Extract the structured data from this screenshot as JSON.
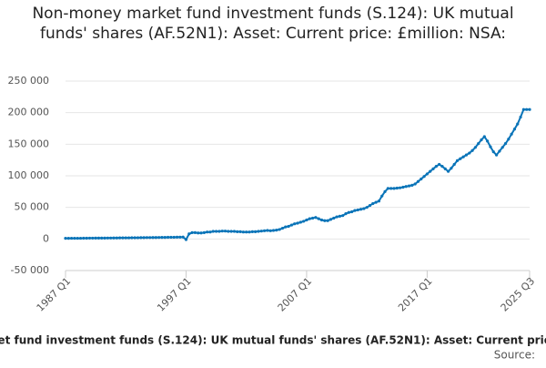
{
  "chart_data": {
    "type": "line",
    "title": "Non-money market fund investment funds (S.124): UK mutual funds' shares (AF.52N1): Asset: Current price: £million: NSA:",
    "source": "Source:",
    "categories": [
      "1987 Q1",
      null,
      null,
      null,
      null,
      null,
      null,
      null,
      null,
      null,
      null,
      null,
      null,
      null,
      null,
      null,
      null,
      null,
      null,
      null,
      null,
      null,
      null,
      null,
      null,
      null,
      null,
      null,
      null,
      null,
      null,
      null,
      null,
      null,
      null,
      null,
      null,
      null,
      null,
      null,
      "1997 Q1",
      null,
      null,
      null,
      null,
      null,
      null,
      null,
      null,
      null,
      null,
      null,
      null,
      null,
      null,
      null,
      null,
      null,
      null,
      null,
      null,
      null,
      null,
      null,
      null,
      null,
      null,
      null,
      null,
      null,
      null,
      null,
      null,
      null,
      null,
      null,
      null,
      null,
      null,
      null,
      "2007 Q1",
      null,
      null,
      null,
      null,
      null,
      null,
      null,
      null,
      null,
      null,
      null,
      null,
      null,
      null,
      null,
      null,
      null,
      null,
      null,
      null,
      null,
      null,
      null,
      null,
      null,
      null,
      null,
      null,
      null,
      null,
      null,
      null,
      null,
      null,
      null,
      null,
      null,
      null,
      null,
      "2017 Q1",
      null,
      null,
      null,
      null,
      null,
      null,
      null,
      null,
      null,
      null,
      null,
      null,
      null,
      null,
      null,
      null,
      null,
      null,
      null,
      null,
      null,
      null,
      null,
      null,
      null,
      null,
      null,
      null,
      null,
      null,
      null,
      null,
      null,
      "2025 Q3"
    ],
    "series": [
      {
        "name": "Non-money market fund investment funds (S.124): UK mutual funds' shares (AF.52N1): Asset: Current price: £million: NSA:",
        "color": "#0a74b8",
        "values": [
          1000,
          1000,
          1100,
          1100,
          1100,
          1100,
          1200,
          1200,
          1300,
          1300,
          1400,
          1400,
          1400,
          1400,
          1500,
          1500,
          1600,
          1600,
          1700,
          1700,
          1800,
          1800,
          1900,
          1900,
          2000,
          2100,
          2100,
          2200,
          2200,
          2300,
          2300,
          2400,
          2500,
          2500,
          2600,
          2700,
          2700,
          2800,
          2900,
          3000,
          -1000,
          8000,
          10000,
          10000,
          9500,
          9500,
          10000,
          11000,
          11000,
          12000,
          12000,
          12000,
          12500,
          12500,
          12000,
          12000,
          12000,
          11500,
          11500,
          11000,
          11000,
          11000,
          11500,
          11500,
          12000,
          12500,
          13000,
          13500,
          13000,
          13500,
          14000,
          15000,
          17000,
          19000,
          20000,
          22000,
          24000,
          25000,
          26500,
          28000,
          30000,
          32000,
          33000,
          34000,
          32000,
          30000,
          29000,
          29000,
          31000,
          33000,
          35000,
          36000,
          37000,
          40000,
          42000,
          43000,
          45000,
          46000,
          47000,
          48000,
          50000,
          53000,
          56000,
          58000,
          60000,
          68000,
          75000,
          80000,
          80000,
          80000,
          80500,
          81000,
          82000,
          83000,
          84000,
          85000,
          87000,
          91000,
          95000,
          99000,
          103000,
          107000,
          111000,
          115000,
          118000,
          115000,
          111000,
          107000,
          112000,
          118000,
          124000,
          127000,
          130000,
          133000,
          136000,
          140000,
          145000,
          151000,
          157000,
          162000,
          155000,
          146000,
          138000,
          133000,
          139000,
          145000,
          151000,
          158000,
          166000,
          174000,
          182000,
          193000,
          205000,
          205000,
          205000
        ]
      }
    ],
    "ylim": [
      -50000,
      250000
    ],
    "yticks": [
      {
        "value": -50000,
        "label": "-50 000"
      },
      0,
      {
        "value": 50000,
        "label": "50 000"
      },
      {
        "value": 100000,
        "label": "100 000"
      },
      {
        "value": 150000,
        "label": "150 000"
      },
      {
        "value": 200000,
        "label": "200 000"
      },
      {
        "value": 250000,
        "label": "250 000"
      }
    ],
    "grid": true
  }
}
